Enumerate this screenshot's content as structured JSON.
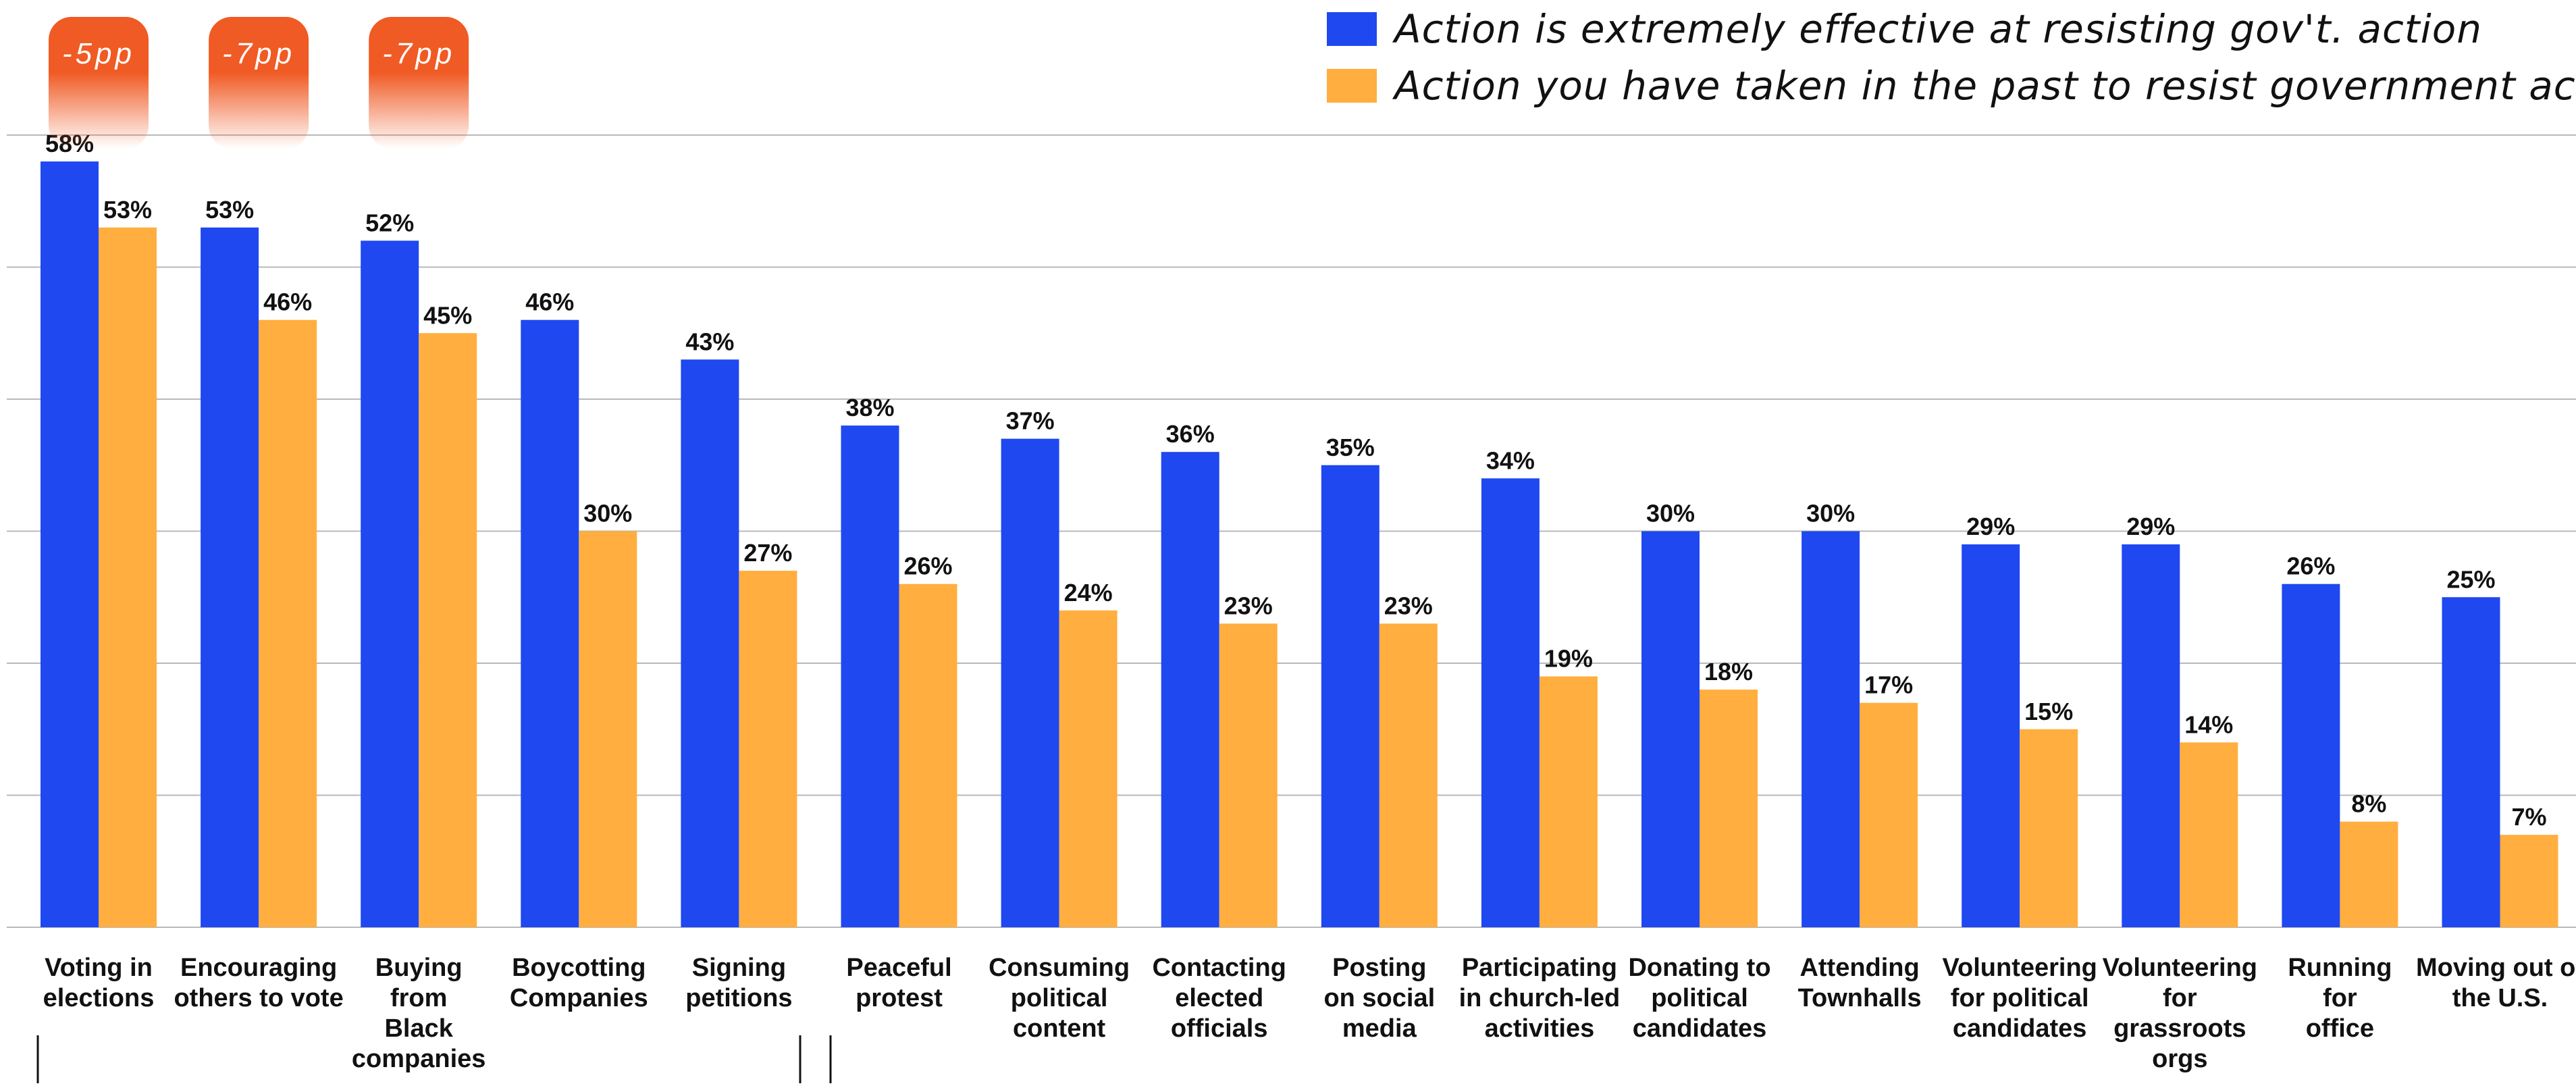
{
  "chart_data": {
    "type": "bar",
    "categories": [
      "Voting in\nelections",
      "Encouraging\nothers to vote",
      "Buying\nfrom\nBlack\ncompanies",
      "Boycotting\nCompanies",
      "Signing\npetitions",
      "Peaceful\nprotest",
      "Consuming\npolitical\ncontent",
      "Contacting\nelected\nofficials",
      "Posting\non social\nmedia",
      "Participating\nin church-led\nactivities",
      "Donating to\npolitical\ncandidates",
      "Attending\nTownhalls",
      "Volunteering\nfor political\ncandidates",
      "Volunteering\nfor\ngrassroots\norgs",
      "Running\nfor\noffice",
      "Moving out of\nthe U.S."
    ],
    "series": [
      {
        "name": "Action is extremely effective at resisting gov't. action",
        "color": "#1f48f0",
        "values": [
          58,
          53,
          52,
          46,
          43,
          38,
          37,
          36,
          35,
          34,
          30,
          30,
          29,
          29,
          26,
          25
        ],
        "labels": [
          "58%",
          "53%",
          "52%",
          "46%",
          "43%",
          "38%",
          "37%",
          "36%",
          "35%",
          "34%",
          "30%",
          "30%",
          "29%",
          "29%",
          "26%",
          "25%"
        ]
      },
      {
        "name": "Action you have taken in the past to resist government actions",
        "color": "#ffae3f",
        "values": [
          53,
          46,
          45,
          30,
          27,
          26,
          24,
          23,
          23,
          19,
          18,
          17,
          15,
          14,
          8,
          7
        ],
        "labels": [
          "53%",
          "46%",
          "45%",
          "30%",
          "27%",
          "26%",
          "24%",
          "23%",
          "23%",
          "19%",
          "18%",
          "17%",
          "15%",
          "14%",
          "8%",
          "7%"
        ]
      }
    ],
    "badges": [
      {
        "category_index": 0,
        "label": "-5pp"
      },
      {
        "category_index": 1,
        "label": "-7pp"
      },
      {
        "category_index": 2,
        "label": "-7pp"
      }
    ],
    "ylim": [
      0,
      60
    ],
    "gridlines": [
      0,
      10,
      20,
      30,
      40,
      50,
      60
    ],
    "grid": true,
    "legend_position": "top-right",
    "title": "",
    "xlabel": "",
    "ylabel": "",
    "colors": {
      "blue": "#1f48f0",
      "orange": "#ffae3f",
      "badge_top": "#f05a24",
      "gridline": "#b9b9b9",
      "text": "#111111"
    }
  }
}
